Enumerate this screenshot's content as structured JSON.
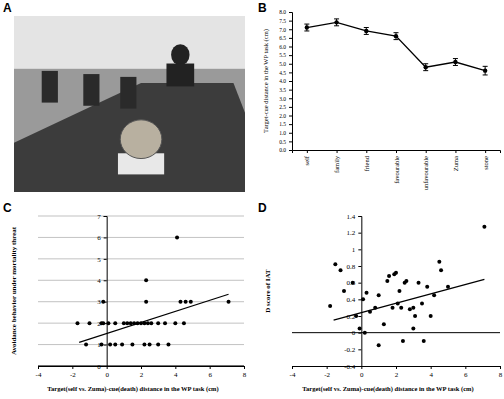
{
  "chart_data": [
    {
      "type": "image",
      "panel": "A"
    },
    {
      "type": "line",
      "panel": "B",
      "ylabel": "Target-cue distance in the WP task (cm)",
      "categories": [
        "self",
        "family",
        "friend",
        "favourable",
        "unfavourable",
        "Zuma",
        "stone"
      ],
      "values": [
        7.1,
        7.4,
        6.9,
        6.6,
        4.8,
        5.1,
        4.6
      ],
      "errors": [
        0.2,
        0.2,
        0.2,
        0.2,
        0.2,
        0.2,
        0.25
      ],
      "color": "#000000",
      "marker": "circle",
      "ylim": [
        0,
        8
      ],
      "yticks": [
        {
          "value": 0,
          "label": "0.0"
        },
        0.5,
        {
          "value": 1,
          "label": "1.0"
        },
        1.5,
        {
          "value": 2,
          "label": "2.0"
        },
        2.5,
        {
          "value": 3,
          "label": "3.0"
        },
        3.5,
        {
          "value": 4,
          "label": "4.0"
        },
        4.5,
        {
          "value": 5,
          "label": "5.0"
        },
        5.5,
        {
          "value": 6,
          "label": "6.0"
        },
        6.5,
        {
          "value": 7,
          "label": "7.0"
        },
        7.5,
        {
          "value": 8,
          "label": "8.0"
        }
      ]
    },
    {
      "type": "scatter",
      "panel": "C",
      "xlabel": "Target(self vs. Zuma)-cue(death) distance in the WP task (cm)",
      "ylabel": "Avoidance behavior under mortality threat",
      "series": [
        {
          "type": "scatter",
          "color": "#000000",
          "marker": "circle",
          "x": [
            -1.7,
            -1.0,
            -0.3,
            -0.2,
            0.1,
            0.5,
            1.0,
            1.2,
            1.4,
            1.6,
            1.8,
            2.0,
            2.2,
            2.4,
            2.6,
            3.0,
            3.4,
            4.0,
            4.5,
            -1.2,
            -0.3,
            0.2,
            0.5,
            0.9,
            1.5,
            2.2,
            2.5,
            3.0,
            3.6,
            -0.2,
            2.3,
            4.3,
            4.6,
            4.9,
            7.1,
            2.3,
            4.1
          ],
          "values": [
            2,
            2,
            2,
            2,
            2,
            2,
            2,
            2,
            2,
            2,
            2,
            2,
            2,
            2,
            2,
            2,
            2,
            2,
            2,
            1,
            1,
            1,
            1,
            1,
            1,
            1,
            1,
            1,
            1,
            3,
            3,
            3,
            3,
            3,
            3,
            4,
            6
          ]
        },
        {
          "type": "line",
          "color": "#000000",
          "x": [
            -1.6,
            7.1
          ],
          "values": [
            1.1,
            3.35
          ]
        }
      ],
      "xlim": [
        -4,
        8
      ],
      "xticks": [
        -4,
        -2,
        0,
        2,
        4,
        6,
        8
      ],
      "ylim": [
        0,
        7
      ],
      "yticks": [
        0,
        1,
        2,
        3,
        4,
        5,
        6,
        7
      ],
      "grid": true
    },
    {
      "type": "scatter",
      "panel": "D",
      "xlabel": "Target(self vs. Zuma)-cue(death) distance in the WP task (cm)",
      "ylabel": "D score of IAT",
      "series": [
        {
          "type": "scatter",
          "color": "#000000",
          "marker": "circle",
          "x": [
            -1.8,
            -1.5,
            -1.2,
            -0.5,
            -0.3,
            -0.1,
            0.1,
            0.2,
            0.5,
            0.8,
            1.0,
            1.0,
            1.3,
            1.5,
            1.6,
            1.8,
            1.9,
            2.0,
            2.1,
            2.2,
            2.3,
            2.4,
            2.5,
            2.6,
            2.8,
            3.0,
            3.1,
            3.3,
            3.5,
            3.6,
            3.8,
            4.0,
            4.2,
            4.5,
            4.6,
            5.0,
            7.1,
            -1.0,
            0.3,
            3.0
          ],
          "values": [
            0.32,
            0.82,
            0.75,
            0.6,
            0.2,
            0.05,
            0.4,
            0.0,
            0.25,
            0.3,
            0.45,
            -0.15,
            0.1,
            0.62,
            0.68,
            0.3,
            0.7,
            0.72,
            0.35,
            0.5,
            0.3,
            -0.1,
            0.6,
            0.62,
            0.28,
            0.3,
            0.2,
            0.6,
            0.35,
            -0.1,
            0.55,
            0.2,
            0.45,
            0.85,
            0.75,
            0.55,
            1.27,
            0.5,
            0.48,
            0.05
          ]
        },
        {
          "type": "line",
          "color": "#000000",
          "x": [
            -1.6,
            7.1
          ],
          "values": [
            0.15,
            0.64
          ]
        }
      ],
      "xlim": [
        -4,
        8
      ],
      "xticks": [
        -4,
        -2,
        0,
        2,
        4,
        6,
        8
      ],
      "ylim": [
        -0.4,
        1.4
      ],
      "yticks": [
        -0.4,
        -0.2,
        0,
        0.2,
        0.4,
        0.6,
        0.8,
        1,
        1.2,
        1.4
      ]
    }
  ]
}
